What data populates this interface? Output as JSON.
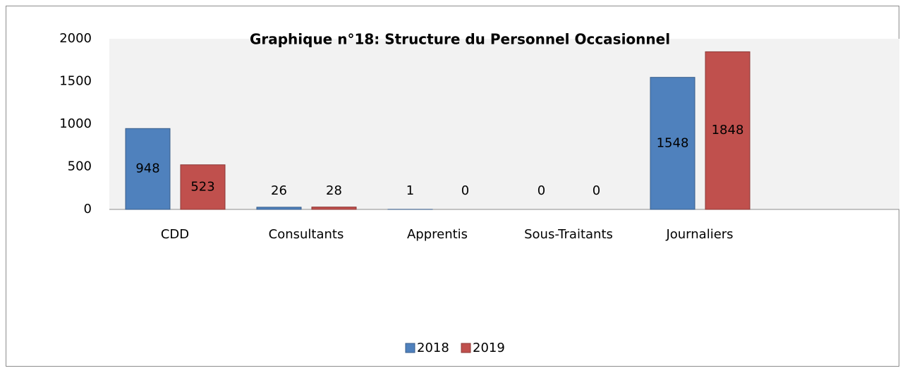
{
  "chart_data": {
    "type": "bar",
    "title": "Graphique  n°18:  Structure du Personnel Occasionnel",
    "categories": [
      "CDD",
      "Consultants",
      "Apprentis",
      "Sous-Traitants",
      "Journaliers"
    ],
    "series": [
      {
        "name": "2018",
        "color": "#4f81bd",
        "values": [
          948,
          26,
          1,
          0,
          1548
        ]
      },
      {
        "name": "2019",
        "color": "#c0504d",
        "values": [
          523,
          28,
          0,
          0,
          1848
        ]
      }
    ],
    "ylim": [
      0,
      2000
    ],
    "yticks": [
      0,
      500,
      1000,
      1500,
      2000
    ],
    "grid": false,
    "legend": "bottom"
  }
}
